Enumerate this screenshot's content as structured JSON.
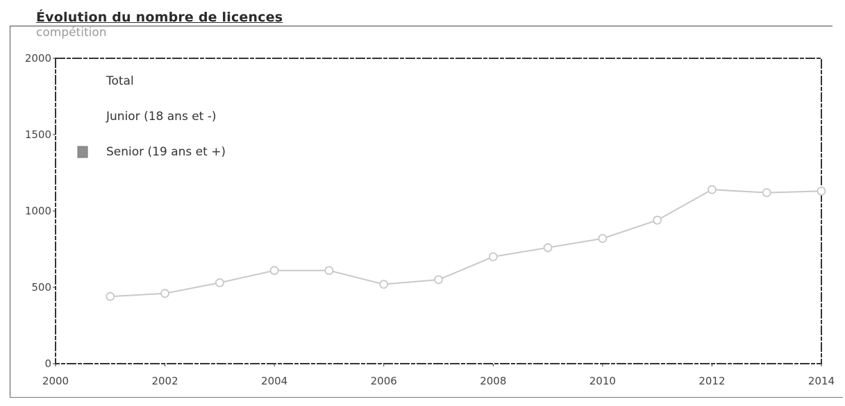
{
  "chart_data": {
    "type": "line",
    "title": "Évolution du nombre de licences",
    "subtitle": "compétition",
    "xlabel": "",
    "ylabel": "",
    "xlim": [
      2000,
      2014
    ],
    "ylim": [
      0,
      2000
    ],
    "x_ticks": [
      2000,
      2002,
      2004,
      2006,
      2008,
      2010,
      2012,
      2014
    ],
    "x_tick_labels": [
      "2000",
      "2002",
      "2004",
      "2006",
      "2008",
      "2010",
      "2012",
      "2014"
    ],
    "y_ticks": [
      0,
      500,
      1000,
      1500,
      2000
    ],
    "y_tick_labels": [
      "0",
      "500",
      "1000",
      "1500",
      "2000"
    ],
    "grid": false,
    "legend_position": "top-left",
    "legend": [
      {
        "name": "Total",
        "color": "#c8c8c8",
        "swatch": "none"
      },
      {
        "name": "Junior (18 ans et -)",
        "color": "#c8c8c8",
        "swatch": "none"
      },
      {
        "name": "Senior (19 ans et +)",
        "color": "#8f8f8f",
        "swatch": "box"
      }
    ],
    "series": [
      {
        "name": "Total",
        "color": "#c8c8c8",
        "x": [
          2001,
          2002,
          2003,
          2004,
          2005,
          2006,
          2007,
          2008,
          2009,
          2010,
          2011,
          2012,
          2013,
          2014
        ],
        "values": [
          440,
          460,
          530,
          610,
          610,
          520,
          550,
          700,
          760,
          820,
          940,
          1140,
          1120,
          1130
        ]
      }
    ]
  }
}
